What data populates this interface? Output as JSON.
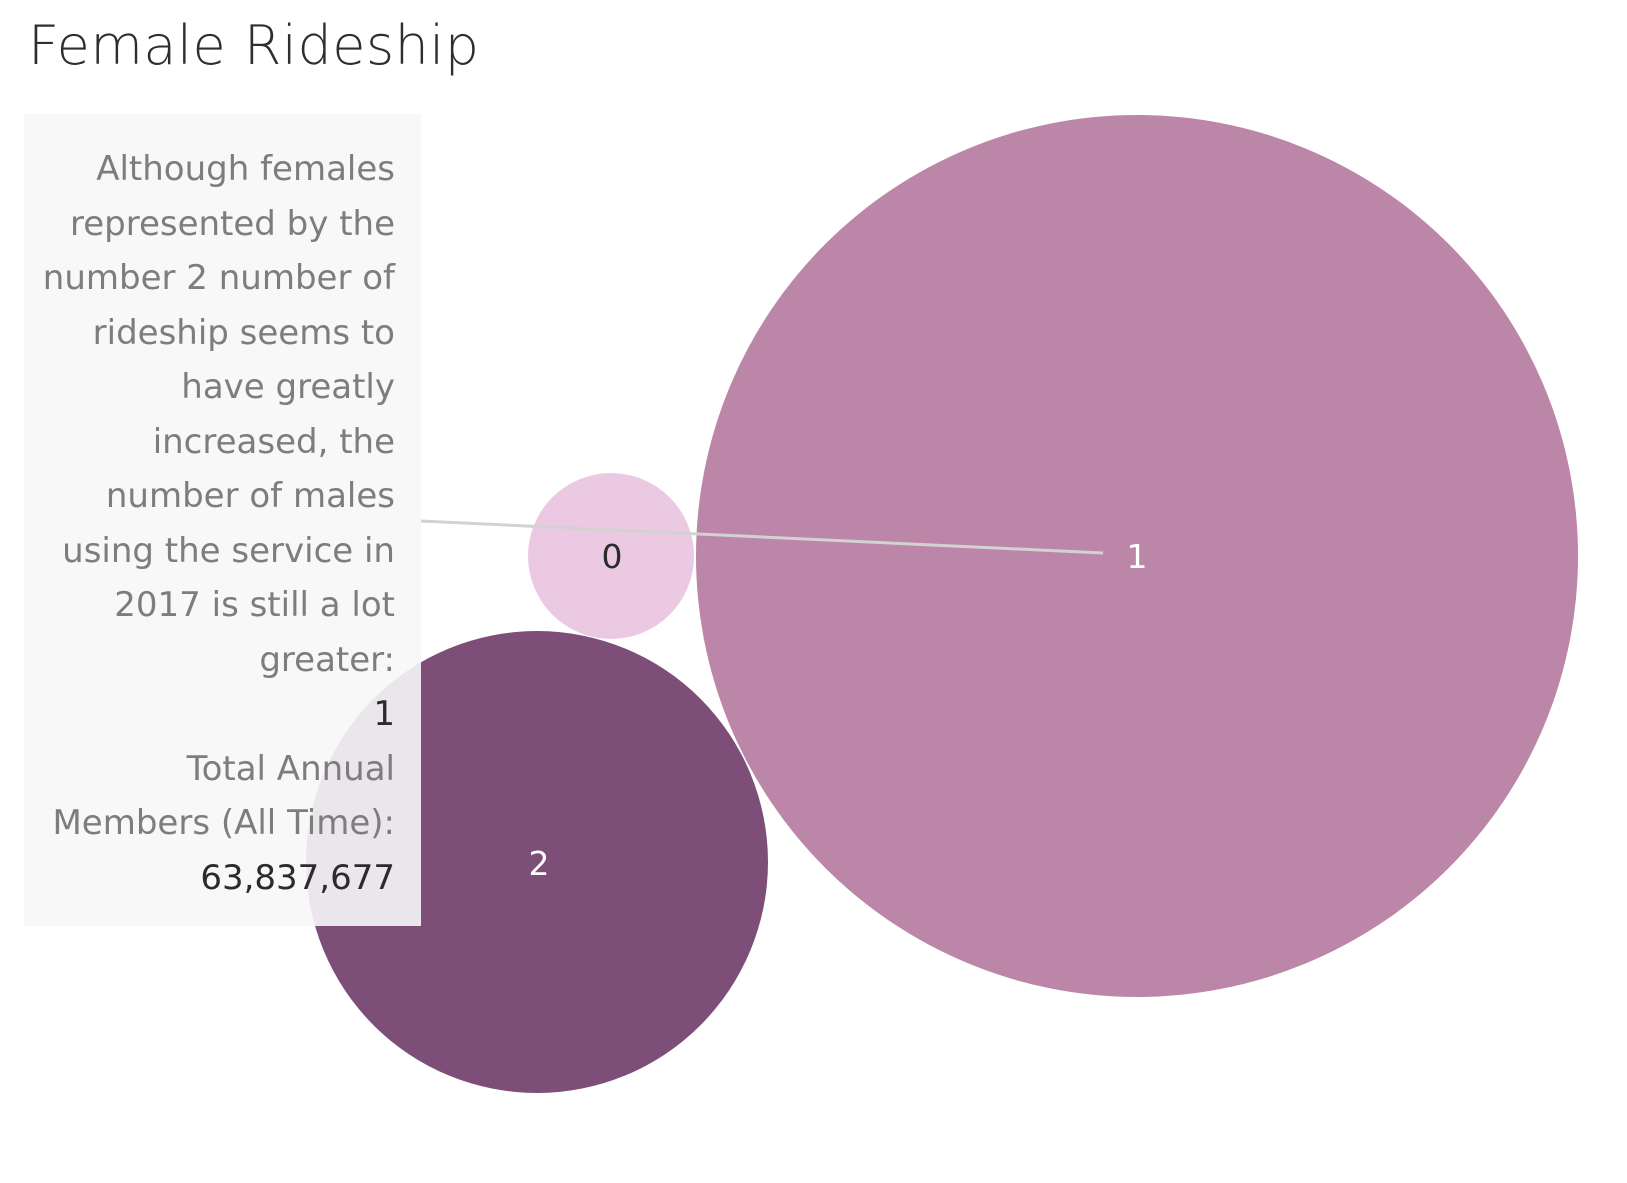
{
  "chart_data": {
    "type": "bubble",
    "title": "Female Rideship",
    "bubbles": [
      {
        "label": "0",
        "size_rank": 3,
        "color": "#ecc9e3",
        "label_color": "#2b2b2b"
      },
      {
        "label": "1",
        "size_rank": 1,
        "color": "#bb86a7",
        "label_color": "#ffffff"
      },
      {
        "label": "2",
        "size_rank": 2,
        "color": "#7d4e77",
        "label_color": "#ffffff"
      }
    ],
    "annotation": {
      "text": "Although females represented by the number 2 number of rideship seems to have greatly increased, the number of males using the service in 2017 is still a lot greater:",
      "value": "1",
      "total_label": "Total Annual Members (All Time):",
      "total_value": "63,837,677"
    }
  }
}
